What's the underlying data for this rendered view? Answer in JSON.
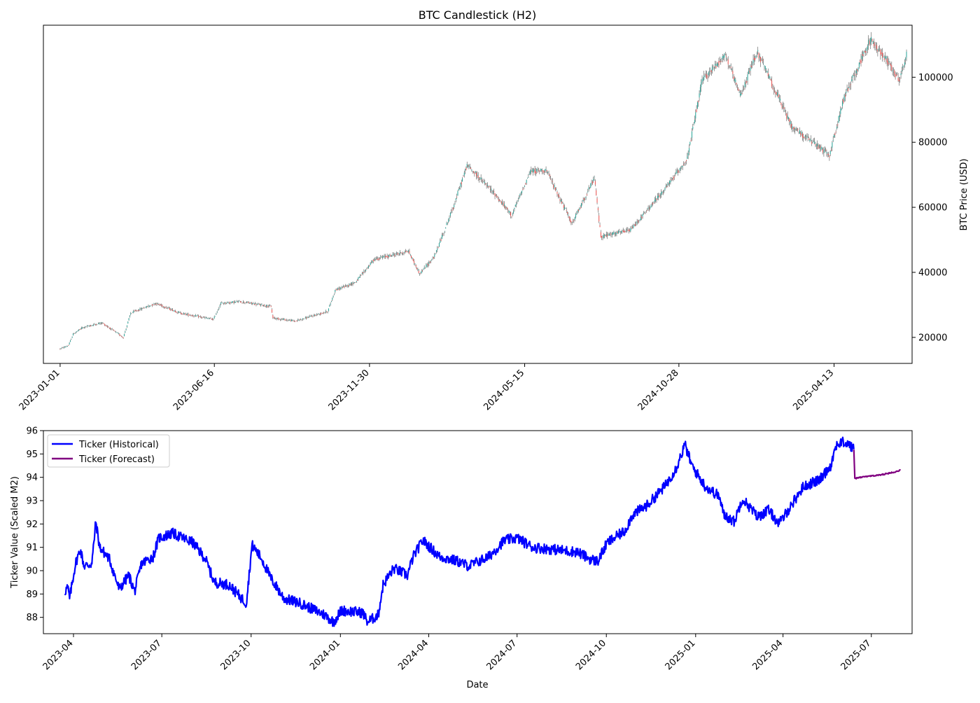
{
  "chart_data": [
    {
      "type": "candlestick",
      "title": "BTC Candlestick (H2)",
      "xlabel": "",
      "ylabel": "BTC Price (USD)",
      "y_axis_side": "right",
      "xlim": [
        "2022-12-14",
        "2025-07-06"
      ],
      "ylim": [
        12000,
        116000
      ],
      "x_ticks": [
        "2023-01-01",
        "2023-06-16",
        "2023-11-30",
        "2024-05-15",
        "2024-10-28",
        "2025-04-13"
      ],
      "y_ticks": [
        20000,
        40000,
        60000,
        80000,
        100000
      ],
      "colors": {
        "up": "#26a69a",
        "down": "#ef5350",
        "wick": "#555555"
      },
      "grid": false,
      "price_path": [
        [
          "2023-01-01",
          16500
        ],
        [
          "2023-01-10",
          17500
        ],
        [
          "2023-01-15",
          21000
        ],
        [
          "2023-01-25",
          23000
        ],
        [
          "2023-02-15",
          24500
        ],
        [
          "2023-03-10",
          20000
        ],
        [
          "2023-03-18",
          27500
        ],
        [
          "2023-04-14",
          30500
        ],
        [
          "2023-05-10",
          27500
        ],
        [
          "2023-06-15",
          25500
        ],
        [
          "2023-06-23",
          30500
        ],
        [
          "2023-07-14",
          31000
        ],
        [
          "2023-08-16",
          29500
        ],
        [
          "2023-08-18",
          26000
        ],
        [
          "2023-09-11",
          25000
        ],
        [
          "2023-10-16",
          28000
        ],
        [
          "2023-10-24",
          34500
        ],
        [
          "2023-11-15",
          37000
        ],
        [
          "2023-12-05",
          44000
        ],
        [
          "2024-01-11",
          46500
        ],
        [
          "2024-01-23",
          39500
        ],
        [
          "2024-02-08",
          45000
        ],
        [
          "2024-02-28",
          60000
        ],
        [
          "2024-03-14",
          73000
        ],
        [
          "2024-04-13",
          64000
        ],
        [
          "2024-05-01",
          57500
        ],
        [
          "2024-05-21",
          71000
        ],
        [
          "2024-06-07",
          71500
        ],
        [
          "2024-07-05",
          55000
        ],
        [
          "2024-07-29",
          69000
        ],
        [
          "2024-08-05",
          51000
        ],
        [
          "2024-09-06",
          53000
        ],
        [
          "2024-10-14",
          66000
        ],
        [
          "2024-11-06",
          75000
        ],
        [
          "2024-11-22",
          99000
        ],
        [
          "2024-12-17",
          107000
        ],
        [
          "2025-01-02",
          94000
        ],
        [
          "2025-01-20",
          108000
        ],
        [
          "2025-02-26",
          85000
        ],
        [
          "2025-04-08",
          76000
        ],
        [
          "2025-04-24",
          94000
        ],
        [
          "2025-05-22",
          111500
        ],
        [
          "2025-06-10",
          105000
        ],
        [
          "2025-06-22",
          99000
        ],
        [
          "2025-06-30",
          107000
        ]
      ]
    },
    {
      "type": "line",
      "xlabel": "Date",
      "ylabel": "Ticker Value (Scaled M2)",
      "xlim": [
        "2023-03-01",
        "2025-08-12"
      ],
      "ylim": [
        87.3,
        96.0
      ],
      "x_ticks": [
        "2023-04",
        "2023-07",
        "2023-10",
        "2024-01",
        "2024-04",
        "2024-07",
        "2024-10",
        "2025-01",
        "2025-04",
        "2025-07"
      ],
      "y_ticks": [
        88,
        89,
        90,
        91,
        92,
        93,
        94,
        95,
        96
      ],
      "legend_position": "upper-left",
      "grid": false,
      "series": [
        {
          "name": "Ticker (Historical)",
          "color": "#0000ff",
          "points": [
            [
              "2023-03-23",
              89.1
            ],
            [
              "2023-03-26",
              89.3
            ],
            [
              "2023-03-28",
              88.8
            ],
            [
              "2023-04-03",
              90.3
            ],
            [
              "2023-04-08",
              90.9
            ],
            [
              "2023-04-12",
              90.2
            ],
            [
              "2023-04-20",
              90.3
            ],
            [
              "2023-04-24",
              92.1
            ],
            [
              "2023-04-28",
              91.0
            ],
            [
              "2023-05-08",
              90.5
            ],
            [
              "2023-05-18",
              89.2
            ],
            [
              "2023-05-28",
              89.8
            ],
            [
              "2023-06-03",
              89.1
            ],
            [
              "2023-06-10",
              90.3
            ],
            [
              "2023-06-22",
              90.6
            ],
            [
              "2023-06-28",
              91.4
            ],
            [
              "2023-07-12",
              91.6
            ],
            [
              "2023-08-02",
              91.2
            ],
            [
              "2023-08-15",
              90.5
            ],
            [
              "2023-08-24",
              89.5
            ],
            [
              "2023-09-08",
              89.4
            ],
            [
              "2023-09-26",
              88.6
            ],
            [
              "2023-10-02",
              91.1
            ],
            [
              "2023-10-12",
              90.5
            ],
            [
              "2023-10-21",
              89.7
            ],
            [
              "2023-11-04",
              88.8
            ],
            [
              "2023-11-21",
              88.6
            ],
            [
              "2023-12-16",
              88.1
            ],
            [
              "2023-12-25",
              87.8
            ],
            [
              "2024-01-02",
              88.3
            ],
            [
              "2024-01-24",
              88.2
            ],
            [
              "2024-01-29",
              87.8
            ],
            [
              "2024-02-09",
              88.1
            ],
            [
              "2024-02-14",
              89.4
            ],
            [
              "2024-02-25",
              90.1
            ],
            [
              "2024-03-10",
              89.8
            ],
            [
              "2024-03-16",
              90.6
            ],
            [
              "2024-03-26",
              91.3
            ],
            [
              "2024-04-12",
              90.6
            ],
            [
              "2024-05-01",
              90.4
            ],
            [
              "2024-05-12",
              90.2
            ],
            [
              "2024-06-02",
              90.6
            ],
            [
              "2024-06-18",
              91.3
            ],
            [
              "2024-07-01",
              91.4
            ],
            [
              "2024-07-17",
              91.0
            ],
            [
              "2024-08-10",
              90.9
            ],
            [
              "2024-09-01",
              90.8
            ],
            [
              "2024-09-14",
              90.5
            ],
            [
              "2024-09-22",
              90.4
            ],
            [
              "2024-10-02",
              91.2
            ],
            [
              "2024-10-20",
              91.7
            ],
            [
              "2024-10-28",
              92.4
            ],
            [
              "2024-11-12",
              92.8
            ],
            [
              "2024-11-30",
              93.6
            ],
            [
              "2024-12-12",
              94.4
            ],
            [
              "2024-12-21",
              95.4
            ],
            [
              "2024-12-28",
              94.5
            ],
            [
              "2025-01-11",
              93.6
            ],
            [
              "2025-01-25",
              93.2
            ],
            [
              "2025-01-30",
              92.4
            ],
            [
              "2025-02-10",
              92.1
            ],
            [
              "2025-02-18",
              93.1
            ],
            [
              "2025-03-06",
              92.3
            ],
            [
              "2025-03-17",
              92.6
            ],
            [
              "2025-03-28",
              92.0
            ],
            [
              "2025-04-11",
              92.9
            ],
            [
              "2025-04-22",
              93.6
            ],
            [
              "2025-05-09",
              93.9
            ],
            [
              "2025-05-20",
              94.5
            ],
            [
              "2025-05-26",
              95.4
            ],
            [
              "2025-06-02",
              95.5
            ],
            [
              "2025-06-08",
              95.4
            ],
            [
              "2025-06-13",
              95.2
            ]
          ]
        },
        {
          "name": "Ticker (Forecast)",
          "color": "#800080",
          "points": [
            [
              "2025-06-13",
              95.2
            ],
            [
              "2025-06-14",
              93.95
            ],
            [
              "2025-06-20",
              94.0
            ],
            [
              "2025-06-30",
              94.05
            ],
            [
              "2025-07-10",
              94.1
            ],
            [
              "2025-07-20",
              94.18
            ],
            [
              "2025-07-31",
              94.3
            ]
          ]
        }
      ]
    }
  ]
}
